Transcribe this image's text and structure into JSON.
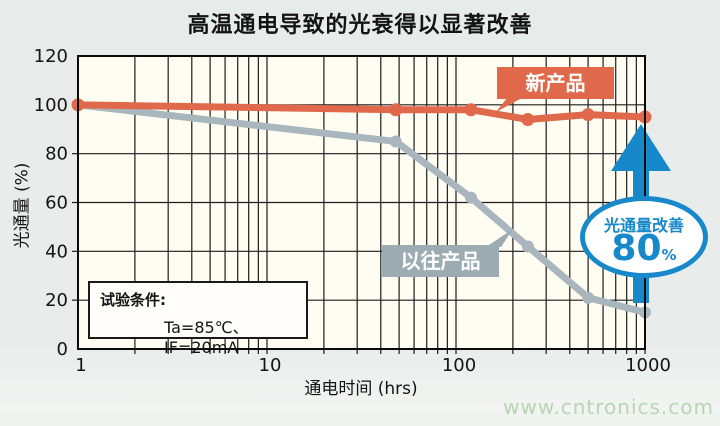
{
  "title": "高温通电导致的光衰得以显著改善",
  "chart_data": {
    "type": "line",
    "x": [
      1,
      48,
      120,
      240,
      500,
      1000
    ],
    "series": [
      {
        "name": "新产品",
        "color": "#e0694c",
        "values": [
          100,
          98,
          98,
          94,
          96,
          95
        ]
      },
      {
        "name": "以往产品",
        "color": "#a9b6be",
        "values": [
          100,
          85,
          62,
          42,
          21,
          15
        ]
      }
    ],
    "title": "高温通电导致的光衰得以显著改善",
    "x_axis": {
      "label": "通电时间 (hrs)",
      "scale": "log",
      "range": [
        1,
        1000
      ],
      "ticks": [
        1,
        10,
        100,
        1000
      ]
    },
    "y_axis": {
      "label": "光通量 (%)",
      "range": [
        0,
        120
      ],
      "ticks": [
        0,
        20,
        40,
        60,
        80,
        100,
        120
      ],
      "gridlines": [
        20,
        40,
        60,
        80,
        100
      ]
    },
    "grid": "on",
    "plot_background": "#fffdf2",
    "grid_color": "#1c1c1c",
    "legend_position": "inline-callouts"
  },
  "annotations": {
    "new_product_label": {
      "text": "新产品",
      "color": "#e0694c"
    },
    "old_product_label": {
      "text": "以往产品",
      "color": "#9dabb3"
    },
    "improvement_badge": {
      "caption": "光通量改善",
      "value": "80",
      "unit": "%",
      "color": "#1789cb"
    },
    "improvement_arrow": {
      "color": "#1789cb",
      "from_value": 15,
      "to_value": 95,
      "at_x": 1000
    },
    "test_conditions": {
      "line1": "试验条件:",
      "line2": "Ta=85℃、 IF=20mA"
    }
  },
  "watermark": {
    "text": "www.cntronics.com",
    "color": "#b7d6b2"
  }
}
